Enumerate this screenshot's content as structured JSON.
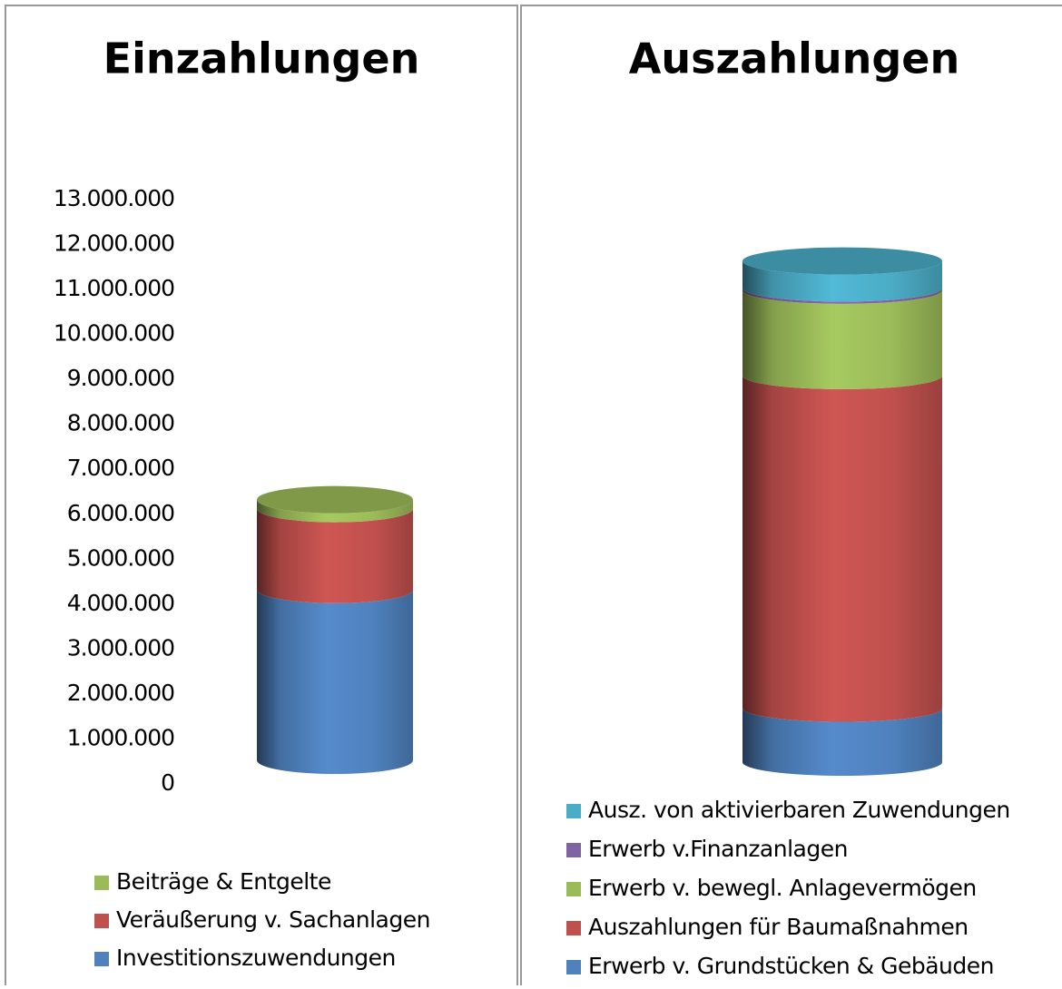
{
  "chart_data": [
    {
      "type": "bar",
      "title": "Einzahlungen",
      "ylim": [
        0,
        13000000
      ],
      "yticks": [
        0,
        {
          "value": 1000000,
          "label": "1.000.000"
        },
        {
          "value": 2000000,
          "label": "2.000.000"
        },
        {
          "value": 3000000,
          "label": "3.000.000"
        },
        {
          "value": 4000000,
          "label": "4.000.000"
        },
        {
          "value": 5000000,
          "label": "5.000.000"
        },
        {
          "value": 6000000,
          "label": "6.000.000"
        },
        {
          "value": 7000000,
          "label": "7.000.000"
        },
        {
          "value": 8000000,
          "label": "8.000.000"
        },
        {
          "value": 9000000,
          "label": "9.000.000"
        },
        {
          "value": 10000000,
          "label": "10.000.000"
        },
        {
          "value": 11000000,
          "label": "11.000.000"
        },
        {
          "value": 12000000,
          "label": "12.000.000"
        },
        {
          "value": 13000000,
          "label": "13.000.000"
        }
      ],
      "series": [
        {
          "name": "Investitionszuwendungen",
          "color": "#4f81bd",
          "values": [
            3800000
          ]
        },
        {
          "name": "Veräußerung v. Sachanlagen",
          "color": "#c0504d",
          "values": [
            1800000
          ]
        },
        {
          "name": "Beiträge & Entgelte",
          "color": "#9bbb59",
          "values": [
            200000
          ]
        }
      ]
    },
    {
      "type": "bar",
      "title": "Auszahlungen",
      "ylim": [
        0,
        13000000
      ],
      "series": [
        {
          "name": "Erwerb v. Grundstücken & Gebäuden",
          "color": "#4f81bd",
          "values": [
            1200000
          ]
        },
        {
          "name": "Auszahlungen für Baumaßnahmen",
          "color": "#c0504d",
          "values": [
            7400000
          ]
        },
        {
          "name": "Erwerb v. bewegl. Anlagevermögen",
          "color": "#9bbb59",
          "values": [
            1900000
          ]
        },
        {
          "name": "Erwerb v.Finanzanlagen",
          "color": "#8064a2",
          "values": [
            50000
          ]
        },
        {
          "name": "Ausz. von aktivierbaren Zuwendungen",
          "color": "#4bacc6",
          "values": [
            600000
          ]
        }
      ]
    }
  ]
}
